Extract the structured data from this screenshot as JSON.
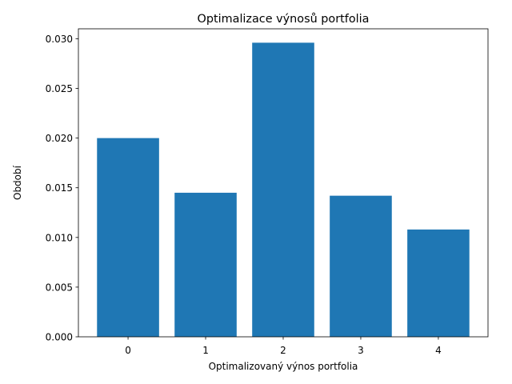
{
  "chart_data": {
    "type": "bar",
    "title": "Optimalizace výnosů portfolia",
    "xlabel": "Optimalizovaný výnos portfolia",
    "ylabel": "Období",
    "categories": [
      "0",
      "1",
      "2",
      "3",
      "4"
    ],
    "values": [
      0.02,
      0.0145,
      0.0296,
      0.0142,
      0.0108
    ],
    "ylim": [
      0,
      0.031
    ],
    "yticks": [
      "0.000",
      "0.005",
      "0.010",
      "0.015",
      "0.020",
      "0.025",
      "0.030"
    ],
    "bar_color": "#1f77b4",
    "grid": false,
    "legend": "none"
  }
}
